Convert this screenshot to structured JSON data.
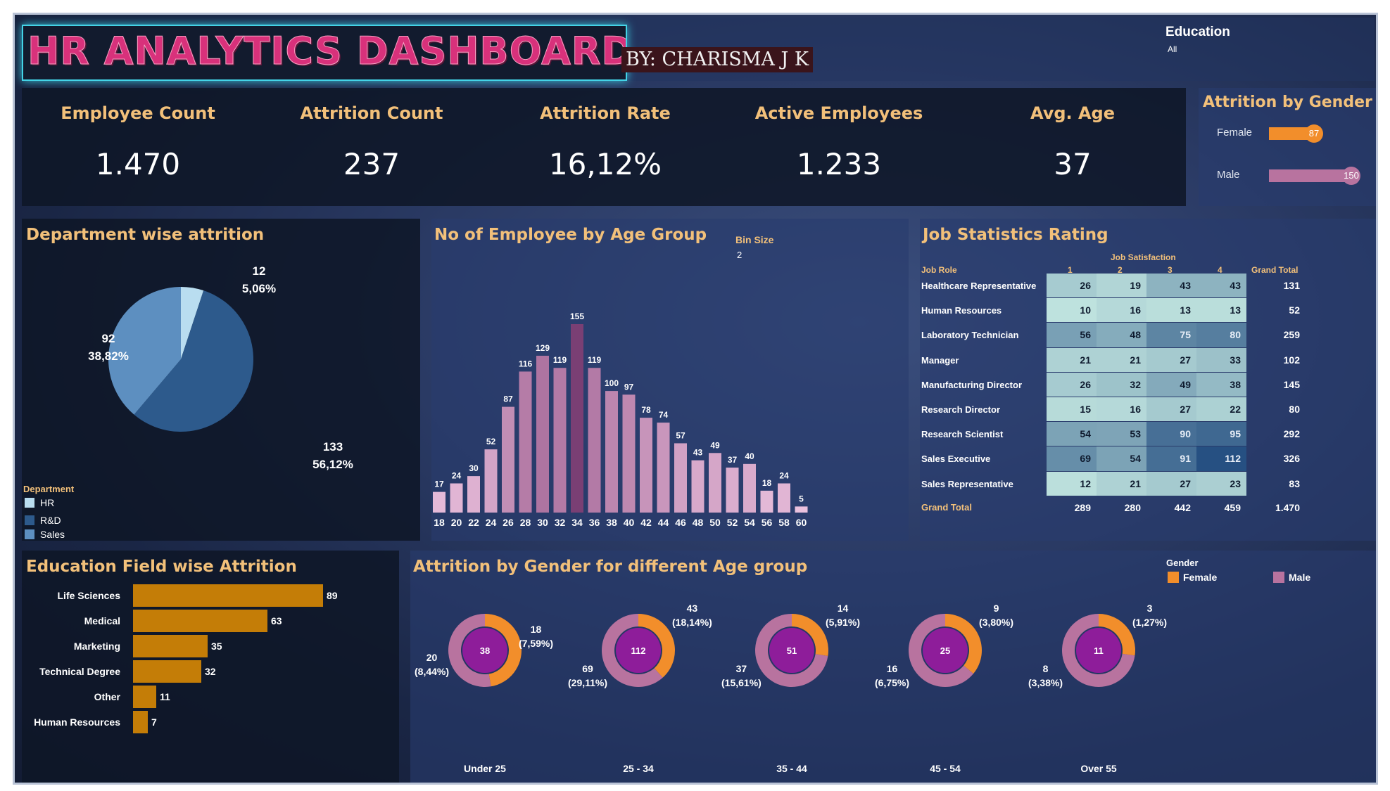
{
  "header": {
    "title": "HR ANALYTICS DASHBOARD",
    "byline": "BY: CHARISMA J K",
    "filter_label": "Education",
    "filter_value": "All"
  },
  "kpis": [
    {
      "label": "Employee Count",
      "value": "1.470"
    },
    {
      "label": "Attrition Count",
      "value": "237"
    },
    {
      "label": "Attrition Rate",
      "value": "16,12%"
    },
    {
      "label": "Active Employees",
      "value": "1.233"
    },
    {
      "label": "Avg. Age",
      "value": "37"
    }
  ],
  "gender_panel": {
    "title": "Attrition by Gender",
    "max": 150,
    "items": [
      {
        "label": "Female",
        "value": 87,
        "display": "87",
        "color": "#f28e2b"
      },
      {
        "label": "Male",
        "value": 150,
        "display": "150",
        "color": "#b8739f"
      }
    ]
  },
  "dept": {
    "title": "Department wise attrition",
    "legend_title": "Department",
    "legend": [
      {
        "name": "HR",
        "color": "#b9ddf0"
      },
      {
        "name": "R&D",
        "color": "#2d5a8c"
      },
      {
        "name": "Sales",
        "color": "#5d8fc0"
      }
    ],
    "labels": [
      {
        "count": "12",
        "pct": "5,06%"
      },
      {
        "count": "133",
        "pct": "56,12%"
      },
      {
        "count": "92",
        "pct": "38,82%"
      }
    ]
  },
  "age": {
    "title": "No of Employee by Age Group",
    "bin_label": "Bin Size",
    "bin_value": "2"
  },
  "job": {
    "title": "Job Statistics Rating",
    "col_group": "Job Satisfaction",
    "role_header": "Job Role",
    "grand_total_header": "Grand Total",
    "columns": [
      "1",
      "2",
      "3",
      "4"
    ],
    "rows": [
      {
        "role": "Healthcare Representative",
        "values": [
          26,
          19,
          43,
          43
        ],
        "total": "131"
      },
      {
        "role": "Human Resources",
        "values": [
          10,
          16,
          13,
          13
        ],
        "total": "52"
      },
      {
        "role": "Laboratory Technician",
        "values": [
          56,
          48,
          75,
          80
        ],
        "total": "259"
      },
      {
        "role": "Manager",
        "values": [
          21,
          21,
          27,
          33
        ],
        "total": "102"
      },
      {
        "role": "Manufacturing Director",
        "values": [
          26,
          32,
          49,
          38
        ],
        "total": "145"
      },
      {
        "role": "Research Director",
        "values": [
          15,
          16,
          27,
          22
        ],
        "total": "80"
      },
      {
        "role": "Research Scientist",
        "values": [
          54,
          53,
          90,
          95
        ],
        "total": "292"
      },
      {
        "role": "Sales Executive",
        "values": [
          69,
          54,
          91,
          112
        ],
        "total": "326"
      },
      {
        "role": "Sales Representative",
        "values": [
          12,
          21,
          27,
          23
        ],
        "total": "83"
      }
    ],
    "grand_total_row": {
      "label": "Grand Total",
      "values": [
        "289",
        "280",
        "442",
        "459"
      ],
      "total": "1.470"
    }
  },
  "edu": {
    "title": "Education Field wise Attrition"
  },
  "donuts": {
    "title": "Attrition by Gender for different Age group",
    "legend_title": "Gender",
    "legend": [
      {
        "name": "Female",
        "color": "#f28e2b"
      },
      {
        "name": "Male",
        "color": "#b8739f"
      }
    ],
    "groups": [
      {
        "category": "Under 25",
        "total": "38",
        "female": 18,
        "male": 20,
        "female_label": "18\n(7,59%)",
        "male_label": "20\n(8,44%)"
      },
      {
        "category": "25 - 34",
        "total": "112",
        "female": 43,
        "male": 69,
        "female_label": "43\n(18,14%)",
        "male_label": "69\n(29,11%)"
      },
      {
        "category": "35 - 44",
        "total": "51",
        "female": 14,
        "male": 37,
        "female_label": "14\n(5,91%)",
        "male_label": "37\n(15,61%)"
      },
      {
        "category": "45 - 54",
        "total": "25",
        "female": 9,
        "male": 16,
        "female_label": "9\n(3,80%)",
        "male_label": "16\n(6,75%)"
      },
      {
        "category": "Over 55",
        "total": "11",
        "female": 3,
        "male": 8,
        "female_label": "3\n(1,27%)",
        "male_label": "8\n(3,38%)"
      }
    ],
    "center_color": "#8e1d9a"
  },
  "chart_data": [
    {
      "type": "pie",
      "title": "Department wise attrition",
      "categories": [
        "HR",
        "R&D",
        "Sales"
      ],
      "values": [
        12,
        133,
        92
      ],
      "colors": [
        "#b9ddf0",
        "#2d5a8c",
        "#5d8fc0"
      ]
    },
    {
      "type": "bar",
      "title": "No of Employee by Age Group",
      "categories": [
        "18",
        "20",
        "22",
        "24",
        "26",
        "28",
        "30",
        "32",
        "34",
        "36",
        "38",
        "40",
        "42",
        "44",
        "46",
        "48",
        "50",
        "52",
        "54",
        "56",
        "58",
        "60"
      ],
      "values": [
        17,
        24,
        30,
        52,
        87,
        116,
        129,
        119,
        155,
        119,
        100,
        97,
        78,
        74,
        57,
        43,
        49,
        37,
        40,
        18,
        24,
        5
      ],
      "ylim": [
        0,
        155
      ]
    },
    {
      "type": "bar",
      "title": "Education Field wise Attrition",
      "categories": [
        "Life Sciences",
        "Medical",
        "Marketing",
        "Technical Degree",
        "Other",
        "Human Resources"
      ],
      "values": [
        89,
        63,
        35,
        32,
        11,
        7
      ],
      "color": "#c47d07"
    }
  ]
}
